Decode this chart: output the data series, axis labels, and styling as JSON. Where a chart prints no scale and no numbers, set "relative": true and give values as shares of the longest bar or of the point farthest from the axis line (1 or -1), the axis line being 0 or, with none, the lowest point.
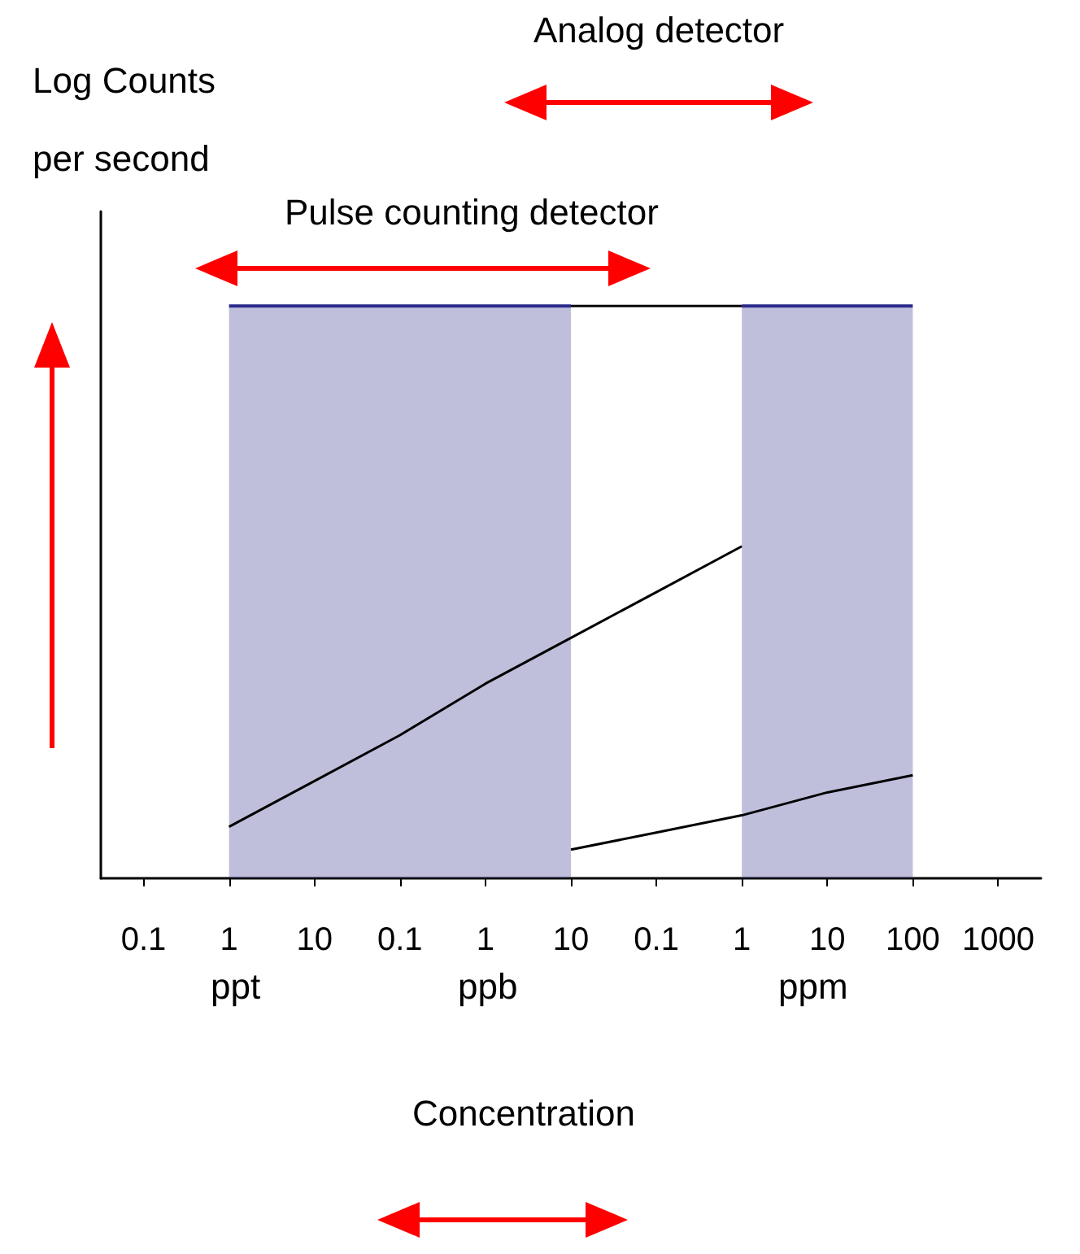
{
  "chart_data": {
    "type": "line",
    "relative": true,
    "xlabel": "Concentration",
    "categories": [
      "0.1",
      "1",
      "10",
      "0.1",
      "1",
      "10",
      "0.1",
      "1",
      "10",
      "100",
      "1000"
    ],
    "series": [
      {
        "type": "area",
        "color": "#2b2b8c",
        "values": [
          null,
          1,
          1,
          1,
          1,
          1,
          null,
          null,
          null,
          null,
          null
        ]
      },
      {
        "color": "#000000",
        "values": [
          null,
          null,
          null,
          null,
          null,
          1,
          1,
          1,
          null,
          null,
          null
        ]
      },
      {
        "type": "area",
        "color": "#2b2b8c",
        "values": [
          null,
          null,
          null,
          null,
          null,
          null,
          null,
          1,
          1,
          1,
          null
        ]
      },
      {
        "color": "#000000",
        "values": [
          null,
          0.09,
          0.17,
          0.25,
          0.34,
          0.42,
          0.5,
          0.58,
          null,
          null,
          null
        ]
      },
      {
        "color": "#000000",
        "values": [
          null,
          null,
          null,
          null,
          null,
          0.05,
          0.08,
          0.11,
          0.15,
          0.18,
          null
        ]
      }
    ],
    "annotations": [
      "Log Counts per second",
      "Pulse counting detector",
      "Analog detector",
      "ppt",
      "ppb",
      "ppm"
    ],
    "marker": "none"
  }
}
